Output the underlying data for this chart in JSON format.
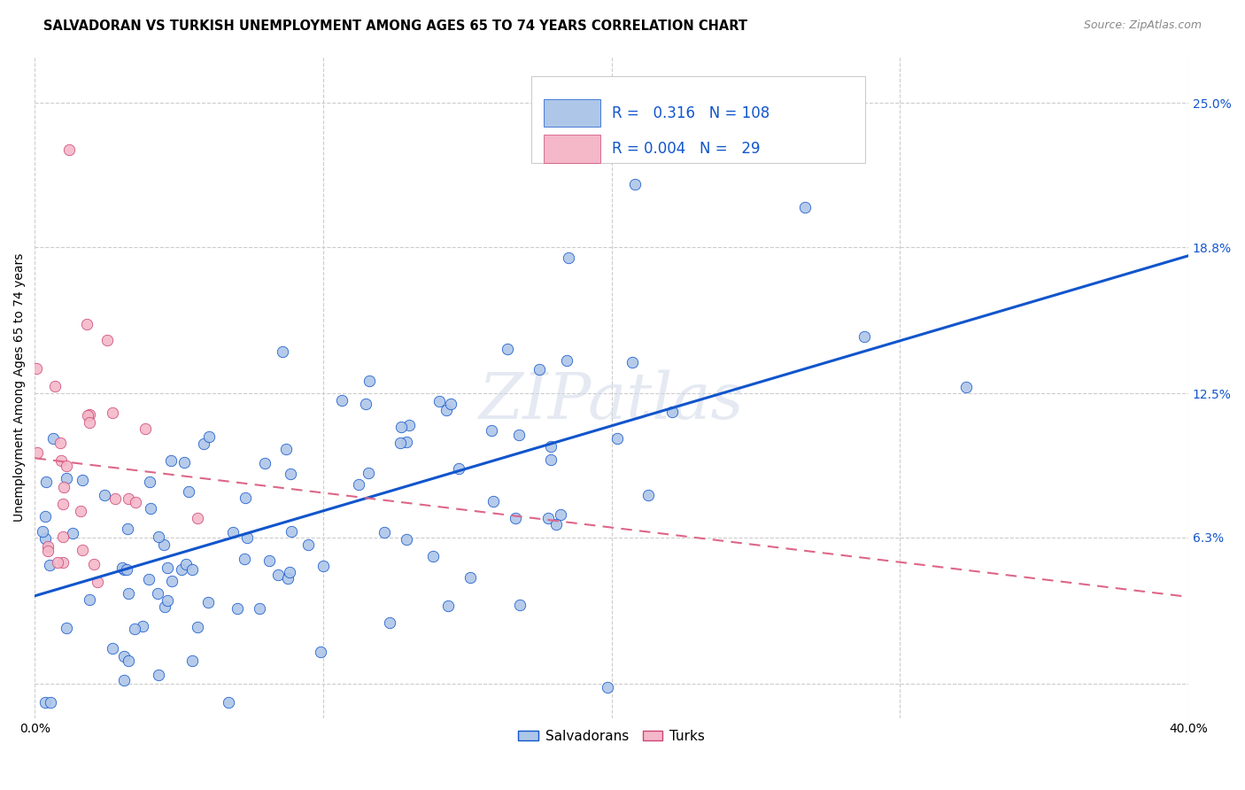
{
  "title": "SALVADORAN VS TURKISH UNEMPLOYMENT AMONG AGES 65 TO 74 YEARS CORRELATION CHART",
  "source": "Source: ZipAtlas.com",
  "ylabel": "Unemployment Among Ages 65 to 74 years",
  "xlim": [
    0.0,
    0.4
  ],
  "ylim": [
    -0.015,
    0.27
  ],
  "xticks": [
    0.0,
    0.1,
    0.2,
    0.3,
    0.4
  ],
  "xticklabels": [
    "0.0%",
    "",
    "",
    "",
    "40.0%"
  ],
  "ytick_positions": [
    0.0,
    0.063,
    0.125,
    0.188,
    0.25
  ],
  "yticklabels": [
    "",
    "6.3%",
    "12.5%",
    "18.8%",
    "25.0%"
  ],
  "watermark": "ZIPatlas",
  "legend_r_salvadoran": "0.316",
  "legend_n_salvadoran": "108",
  "legend_r_turk": "0.004",
  "legend_n_turk": "29",
  "salvadoran_color": "#aec6e8",
  "turk_color": "#f4b8c8",
  "line_salvadoran_color": "#1155cc",
  "line_turk_color": "#dd6688",
  "grid_color": "#cccccc",
  "background_color": "#ffffff",
  "title_fontsize": 10.5,
  "axis_label_fontsize": 10,
  "tick_fontsize": 10,
  "source_fontsize": 9,
  "legend_fontsize": 12
}
